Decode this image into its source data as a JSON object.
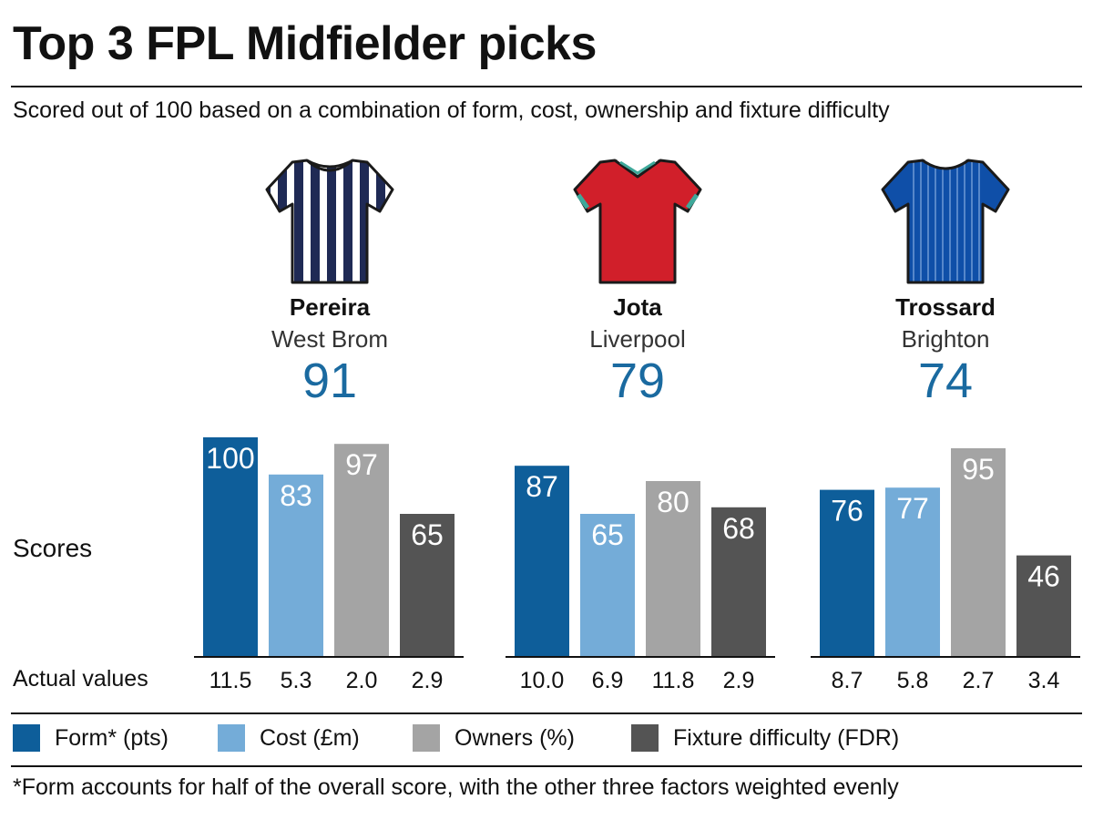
{
  "title": "Top 3 FPL Midfielder picks",
  "subtitle": "Scored out of 100 based on a combination of form, cost, ownership and fixture difficulty",
  "players": [
    {
      "name": "Pereira",
      "team": "West Brom",
      "score": "91",
      "shirt": "striped-navy-white-shirt-icon"
    },
    {
      "name": "Jota",
      "team": "Liverpool",
      "score": "79",
      "shirt": "red-shirt-icon"
    },
    {
      "name": "Trossard",
      "team": "Brighton",
      "score": "74",
      "shirt": "blue-pinstripe-shirt-icon"
    }
  ],
  "row_labels": {
    "scores": "Scores",
    "actual": "Actual values"
  },
  "legend": [
    {
      "label": "Form* (pts)",
      "color": "#0e5e9a"
    },
    {
      "label": "Cost (£m)",
      "color": "#74acd8"
    },
    {
      "label": "Owners (%)",
      "color": "#a4a4a4"
    },
    {
      "label": "Fixture difficulty (FDR)",
      "color": "#545454"
    }
  ],
  "footnote": "*Form accounts for half of the overall score, with the other three factors weighted evenly",
  "colors": {
    "score_text": "#1a6aa0",
    "west_brom_navy": "#1f2a55",
    "liverpool_red": "#d11f2a",
    "liverpool_trim": "#3ea89a",
    "brighton_blue": "#0f4fa8"
  },
  "chart_data": {
    "type": "bar",
    "ylim": [
      0,
      100
    ],
    "categories": [
      "Form* (pts)",
      "Cost (£m)",
      "Owners (%)",
      "Fixture difficulty (FDR)"
    ],
    "groups": [
      {
        "player": "Pereira",
        "values": [
          100,
          83,
          97,
          65
        ],
        "actual": [
          "11.5",
          "5.3",
          "2.0",
          "2.9"
        ]
      },
      {
        "player": "Jota",
        "values": [
          87,
          65,
          80,
          68
        ],
        "actual": [
          "10.0",
          "6.9",
          "11.8",
          "2.9"
        ]
      },
      {
        "player": "Trossard",
        "values": [
          76,
          77,
          95,
          46
        ],
        "actual": [
          "8.7",
          "5.8",
          "2.7",
          "3.4"
        ]
      }
    ],
    "colors": [
      "#0e5e9a",
      "#74acd8",
      "#a4a4a4",
      "#545454"
    ]
  }
}
